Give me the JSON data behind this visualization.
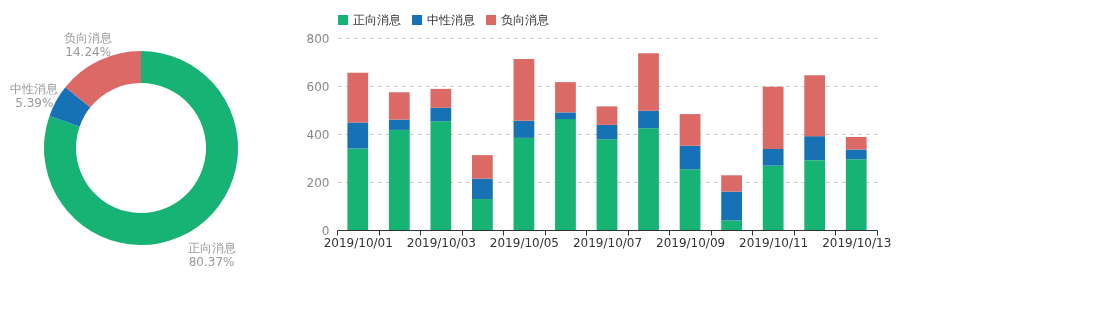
{
  "chart_data": [
    {
      "type": "donut",
      "categories": [
        "正向消息",
        "中性消息",
        "负向消息"
      ],
      "values": [
        80.37,
        5.39,
        14.24
      ],
      "colors": [
        "#16b374",
        "#1771b5",
        "#db6a67"
      ],
      "value_labels": [
        "80.37%",
        "5.39%",
        "14.24%"
      ]
    },
    {
      "type": "bar",
      "stacked": true,
      "categories": [
        "2019/10/01",
        null,
        "2019/10/03",
        null,
        "2019/10/05",
        null,
        "2019/10/07",
        null,
        "2019/10/09",
        null,
        "2019/10/11",
        null,
        "2019/10/13"
      ],
      "series": [
        {
          "name": "正向消息",
          "color": "#16b374",
          "values": [
            339,
            417,
            453,
            129,
            384,
            462,
            378,
            424,
            253,
            40,
            268,
            291,
            295
          ]
        },
        {
          "name": "中性消息",
          "color": "#1771b5",
          "values": [
            109,
            43,
            56,
            85,
            71,
            28,
            60,
            73,
            98,
            120,
            70,
            100,
            40
          ]
        },
        {
          "name": "负向消息",
          "color": "#db6a67",
          "values": [
            207,
            114,
            79,
            98,
            257,
            126,
            77,
            239,
            132,
            68,
            259,
            254,
            53
          ]
        }
      ],
      "ylim": [
        0,
        800
      ],
      "yticks": [
        0,
        200,
        400,
        600,
        800
      ],
      "grid": "y",
      "legend": "top left"
    }
  ]
}
